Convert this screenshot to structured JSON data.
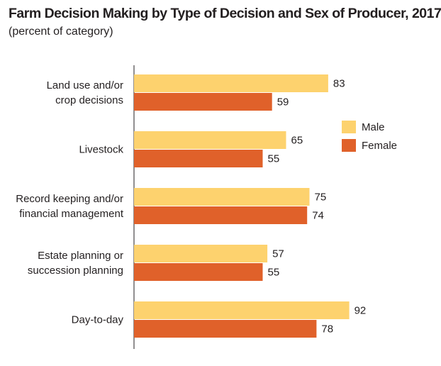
{
  "chart_data": {
    "type": "bar",
    "orientation": "horizontal",
    "title": "Farm Decision Making by Type of Decision and Sex of Producer, 2017",
    "subtitle": "(percent of category)",
    "categories": [
      [
        "Land use and/or",
        "crop decisions"
      ],
      [
        "Livestock"
      ],
      [
        "Record keeping and/or",
        "financial management"
      ],
      [
        "Estate planning or",
        "succession planning"
      ],
      [
        "Day-to-day"
      ]
    ],
    "series": [
      {
        "name": "Male",
        "color": "#fdd26e",
        "values": [
          83,
          65,
          75,
          57,
          92
        ]
      },
      {
        "name": "Female",
        "color": "#e0612a",
        "values": [
          59,
          55,
          74,
          55,
          78
        ]
      }
    ],
    "xlim": [
      0,
      100
    ],
    "grid": false,
    "legend": "right"
  }
}
